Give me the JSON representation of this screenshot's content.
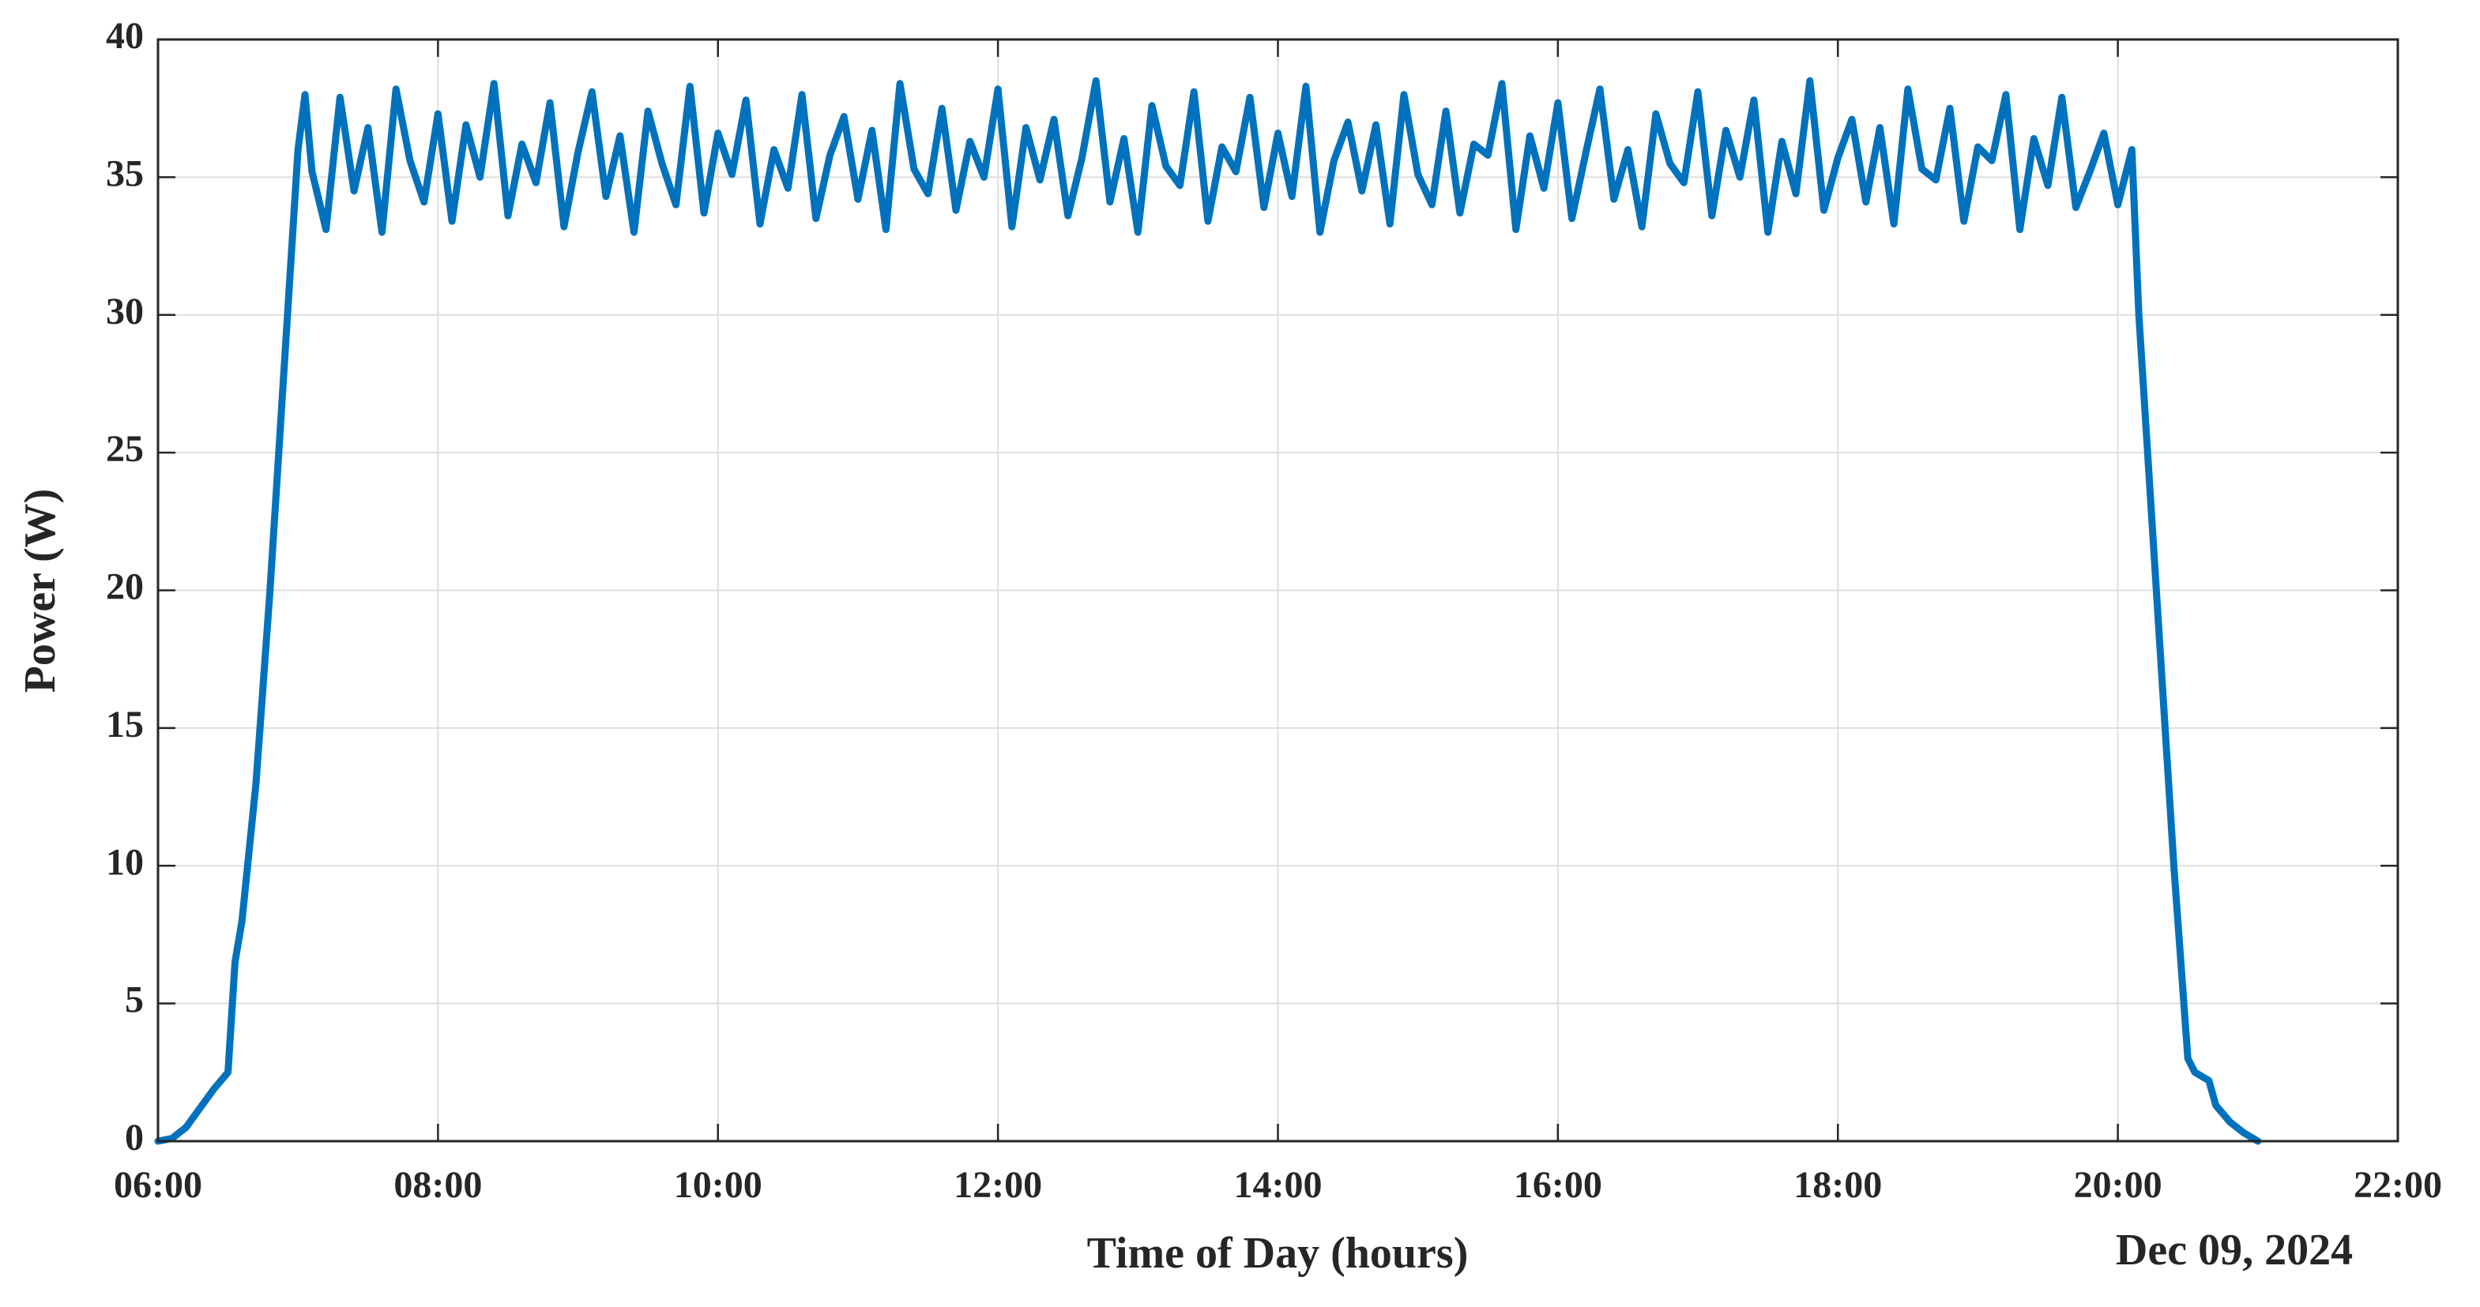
{
  "chart_data": {
    "type": "line",
    "xlabel": "Time of Day (hours)",
    "ylabel": "Power (W)",
    "annotation": "Dec 09, 2024",
    "color": "#0072bd",
    "grid": true,
    "xlim": [
      6,
      22
    ],
    "ylim": [
      0,
      40
    ],
    "xticks": [
      {
        "value": 6,
        "label": "06:00"
      },
      {
        "value": 8,
        "label": "08:00"
      },
      {
        "value": 10,
        "label": "10:00"
      },
      {
        "value": 12,
        "label": "12:00"
      },
      {
        "value": 14,
        "label": "14:00"
      },
      {
        "value": 16,
        "label": "16:00"
      },
      {
        "value": 18,
        "label": "18:00"
      },
      {
        "value": 20,
        "label": "20:00"
      },
      {
        "value": 22,
        "label": "22:00"
      }
    ],
    "yticks": [
      0,
      5,
      10,
      15,
      20,
      25,
      30,
      35,
      40
    ],
    "x": [
      6.0,
      6.1,
      6.2,
      6.3,
      6.4,
      6.5,
      6.55,
      6.6,
      6.7,
      6.8,
      6.9,
      6.95,
      7.0,
      7.05,
      7.1,
      7.2,
      7.3,
      7.4,
      7.5,
      7.6,
      7.7,
      7.8,
      7.9,
      8.0,
      8.1,
      8.2,
      8.3,
      8.4,
      8.5,
      8.6,
      8.7,
      8.8,
      8.9,
      9.0,
      9.1,
      9.2,
      9.3,
      9.4,
      9.5,
      9.6,
      9.7,
      9.8,
      9.9,
      10.0,
      10.1,
      10.2,
      10.3,
      10.4,
      10.5,
      10.6,
      10.7,
      10.8,
      10.9,
      11.0,
      11.1,
      11.2,
      11.3,
      11.4,
      11.5,
      11.6,
      11.7,
      11.8,
      11.9,
      12.0,
      12.1,
      12.2,
      12.3,
      12.4,
      12.5,
      12.6,
      12.7,
      12.8,
      12.9,
      13.0,
      13.1,
      13.2,
      13.3,
      13.4,
      13.5,
      13.6,
      13.7,
      13.8,
      13.9,
      14.0,
      14.1,
      14.2,
      14.3,
      14.4,
      14.5,
      14.6,
      14.7,
      14.8,
      14.9,
      15.0,
      15.1,
      15.2,
      15.3,
      15.4,
      15.5,
      15.6,
      15.7,
      15.8,
      15.9,
      16.0,
      16.1,
      16.2,
      16.3,
      16.4,
      16.5,
      16.6,
      16.7,
      16.8,
      16.9,
      17.0,
      17.1,
      17.2,
      17.3,
      17.4,
      17.5,
      17.6,
      17.7,
      17.8,
      17.9,
      18.0,
      18.1,
      18.2,
      18.3,
      18.4,
      18.5,
      18.6,
      18.7,
      18.8,
      18.9,
      19.0,
      19.1,
      19.2,
      19.3,
      19.4,
      19.5,
      19.6,
      19.7,
      19.8,
      19.9,
      20.0,
      20.1,
      20.15,
      20.2,
      20.3,
      20.4,
      20.5,
      20.55,
      20.65,
      20.7,
      20.8,
      20.9,
      21.0
    ],
    "values": [
      0,
      0.1,
      0.5,
      1.2,
      1.9,
      2.5,
      6.5,
      8,
      13,
      20,
      28,
      32,
      36,
      38,
      35.2,
      33.1,
      37.9,
      34.5,
      36.8,
      33.0,
      38.2,
      35.6,
      34.1,
      37.3,
      33.4,
      36.9,
      35.0,
      38.4,
      33.6,
      36.2,
      34.8,
      37.7,
      33.2,
      35.9,
      38.1,
      34.3,
      36.5,
      33.0,
      37.4,
      35.5,
      34.0,
      38.3,
      33.7,
      36.6,
      35.1,
      37.8,
      33.3,
      36.0,
      34.6,
      38.0,
      33.5,
      35.8,
      37.2,
      34.2,
      36.7,
      33.1,
      38.4,
      35.3,
      34.4,
      37.5,
      33.8,
      36.3,
      35.0,
      38.2,
      33.2,
      36.8,
      34.9,
      37.1,
      33.6,
      35.7,
      38.5,
      34.1,
      36.4,
      33.0,
      37.6,
      35.4,
      34.7,
      38.1,
      33.4,
      36.1,
      35.2,
      37.9,
      33.9,
      36.6,
      34.3,
      38.3,
      33.0,
      35.6,
      37.0,
      34.5,
      36.9,
      33.3,
      38.0,
      35.1,
      34.0,
      37.4,
      33.7,
      36.2,
      35.8,
      38.4,
      33.1,
      36.5,
      34.6,
      37.7,
      33.5,
      35.9,
      38.2,
      34.2,
      36.0,
      33.2,
      37.3,
      35.5,
      34.8,
      38.1,
      33.6,
      36.7,
      35.0,
      37.8,
      33.0,
      36.3,
      34.4,
      38.5,
      33.8,
      35.7,
      37.1,
      34.1,
      36.8,
      33.3,
      38.2,
      35.3,
      34.9,
      37.5,
      33.4,
      36.1,
      35.6,
      38.0,
      33.1,
      36.4,
      34.7,
      37.9,
      33.9,
      35.2,
      36.6,
      34.0,
      36,
      30,
      26,
      18,
      10,
      3,
      2.5,
      2.2,
      1.3,
      0.7,
      0.3,
      0
    ]
  }
}
